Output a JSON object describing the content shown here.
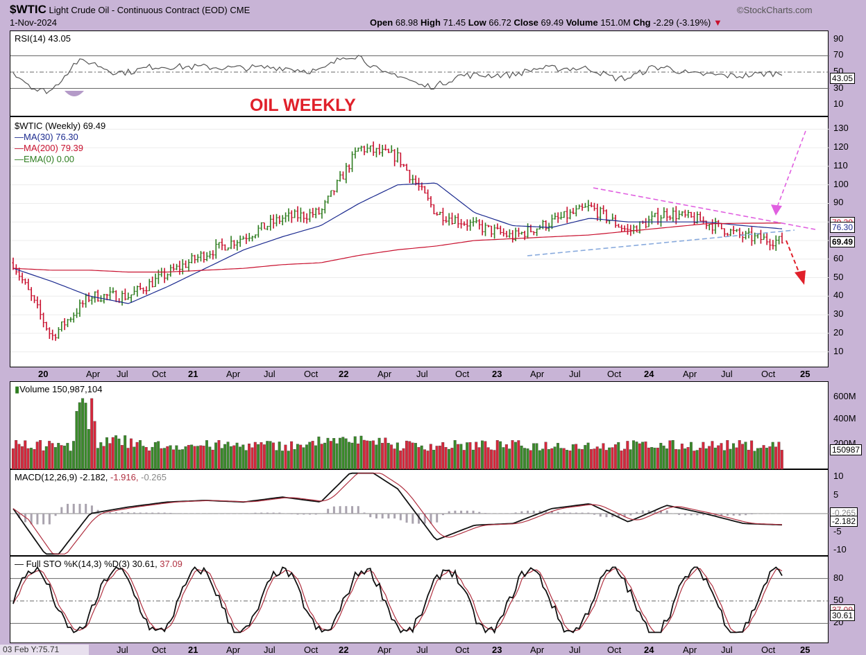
{
  "header": {
    "symbol": "$WTIC",
    "name": "Light Crude Oil - Continuous Contract (EOD)",
    "exchange": "CME",
    "date": "1-Nov-2024",
    "brand": "©StockCharts.com",
    "open_label": "Open",
    "open": "68.98",
    "high_label": "High",
    "high": "71.45",
    "low_label": "Low",
    "low": "66.72",
    "close_label": "Close",
    "close": "69.49",
    "volume_label": "Volume",
    "volume": "151.0M",
    "chg_label": "Chg",
    "chg": "-2.29 (-3.19%)"
  },
  "annotation": "OIL WEEKLY",
  "rsi": {
    "label": "RSI(14) 43.05",
    "value_tag": "43.05",
    "ticks": [
      "90",
      "70",
      "50",
      "30",
      "10"
    ]
  },
  "price": {
    "legend": [
      "$WTIC (Weekly) 69.49",
      "MA(30) 76.30",
      "MA(200) 79.39",
      "EMA(0) 0.00"
    ],
    "tags": [
      "79.39",
      "76.30",
      "69.49"
    ],
    "ticks": [
      "130",
      "120",
      "110",
      "100",
      "90",
      "80",
      "70",
      "60",
      "50",
      "40",
      "30",
      "20",
      "10"
    ]
  },
  "volume": {
    "label": "Volume 150,987,104",
    "tag": "150987",
    "ticks": [
      "600M",
      "400M",
      "200M"
    ]
  },
  "macd": {
    "label_a": "MACD(12,26,9) -2.182, ",
    "label_b": "-1.916, ",
    "label_c": "-0.265",
    "tags": [
      "-0.265",
      "-2.182"
    ],
    "ticks": [
      "10",
      "5",
      "0",
      "-5",
      "-10"
    ]
  },
  "sto": {
    "label_a": "Full STO %K(14,3) %D(3) 30.61, ",
    "label_b": "37.09",
    "tags": [
      "37.09",
      "30.61"
    ],
    "ticks": [
      "80",
      "50",
      "20"
    ]
  },
  "x_axis": [
    "20",
    "Apr",
    "Jul",
    "Oct",
    "21",
    "Apr",
    "Jul",
    "Oct",
    "22",
    "Apr",
    "Jul",
    "Oct",
    "23",
    "Apr",
    "Jul",
    "Oct",
    "24",
    "Apr",
    "Jul",
    "Oct",
    "25"
  ],
  "x_axis_bottom": [
    "Jul",
    "Oct",
    "21",
    "Apr",
    "Jul",
    "Oct",
    "22",
    "Apr",
    "Jul",
    "Oct",
    "23",
    "Apr",
    "Jul",
    "Oct",
    "24",
    "Apr",
    "Jul",
    "Oct",
    "25"
  ],
  "cursor": "03 Feb Y:75.71",
  "colors": {
    "up": "#2e7d20",
    "down": "#c8102e",
    "ma30": "#1b2a8f",
    "ma200": "#c8102e",
    "trend_pink": "#e060e0",
    "trend_blue": "#88aadd",
    "annot": "#e0202a"
  },
  "chart_data": {
    "type": "line",
    "title": "$WTIC Light Crude Oil - Continuous Contract (EOD)",
    "x": [
      "2020-01",
      "2020-04",
      "2020-07",
      "2020-10",
      "2021-01",
      "2021-04",
      "2021-07",
      "2021-10",
      "2022-01",
      "2022-03",
      "2022-06",
      "2022-09",
      "2023-01",
      "2023-04",
      "2023-07",
      "2023-10",
      "2024-01",
      "2024-04",
      "2024-07",
      "2024-10",
      "2024-11"
    ],
    "series": [
      {
        "name": "$WTIC (Weekly)",
        "values": [
          58,
          18,
          40,
          40,
          52,
          63,
          72,
          82,
          85,
          120,
          115,
          85,
          78,
          72,
          80,
          88,
          75,
          85,
          80,
          72,
          69.49
        ]
      },
      {
        "name": "MA(30)",
        "values": [
          55,
          48,
          40,
          36,
          45,
          55,
          65,
          72,
          78,
          90,
          100,
          101,
          85,
          78,
          77,
          82,
          80,
          80,
          80,
          78,
          76.3
        ]
      },
      {
        "name": "MA(200)",
        "values": [
          55,
          54,
          54,
          53,
          53,
          54,
          55,
          57,
          58,
          62,
          65,
          67,
          70,
          71,
          72,
          73,
          75,
          77,
          79,
          79.3,
          79.39
        ]
      }
    ],
    "ylim": [
      0,
      135
    ]
  }
}
